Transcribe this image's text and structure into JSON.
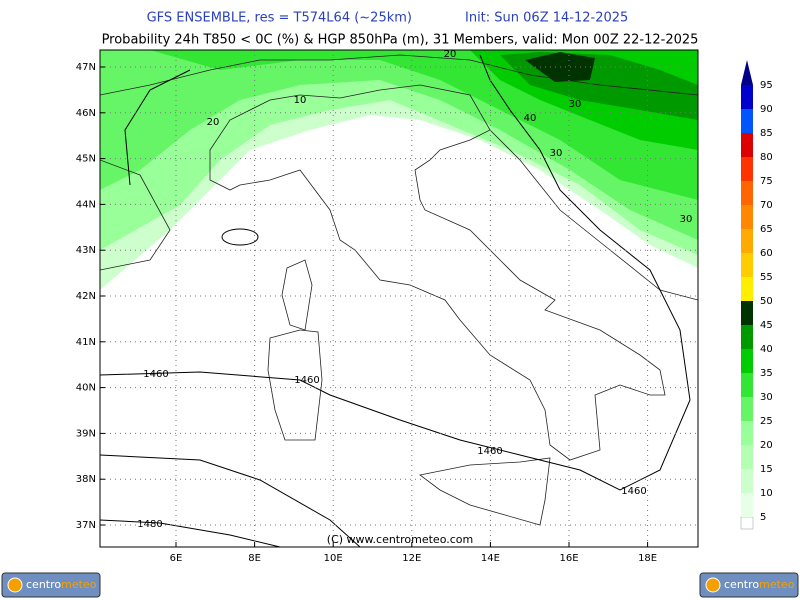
{
  "header": {
    "title": "GFS ENSEMBLE, res = T574L64 (~25km)",
    "init": "Init: Sun 06Z 14-12-2025",
    "subtitle": "Probability 24h T850 < 0C (%) & HGP 850hPa (m), 31 Members, valid: Mon 00Z 22-12-2025"
  },
  "map": {
    "lat_labels": [
      "47N",
      "46N",
      "45N",
      "44N",
      "43N",
      "42N",
      "41N",
      "40N",
      "39N",
      "38N",
      "37N"
    ],
    "lon_labels": [
      "6E",
      "8E",
      "10E",
      "12E",
      "14E",
      "16E",
      "18E"
    ],
    "contour_labels": [
      "20",
      "10",
      "20",
      "40",
      "30",
      "30",
      "30",
      "1460",
      "1460",
      "1460",
      "1460",
      "1480"
    ],
    "copyright": "(C) www.centrometeo.com"
  },
  "colorbar": {
    "labels": [
      "5",
      "10",
      "15",
      "20",
      "25",
      "30",
      "35",
      "40",
      "45",
      "50",
      "55",
      "60",
      "65",
      "70",
      "75",
      "80",
      "85",
      "90",
      "95"
    ],
    "colors": [
      "#e6ffe6",
      "#ccffcc",
      "#b3ffb3",
      "#99ff99",
      "#66f566",
      "#33e633",
      "#00cc00",
      "#009900",
      "#003300",
      "#ffee00",
      "#ffcc00",
      "#ffaa00",
      "#ff8800",
      "#ff6600",
      "#ff3300",
      "#dd0000",
      "#0055ff",
      "#0000cc",
      "#000088"
    ]
  },
  "logos": {
    "left": {
      "part1": "centro",
      "part2": "meteo"
    },
    "right": {
      "part1": "centro",
      "part2": "meteo"
    }
  }
}
